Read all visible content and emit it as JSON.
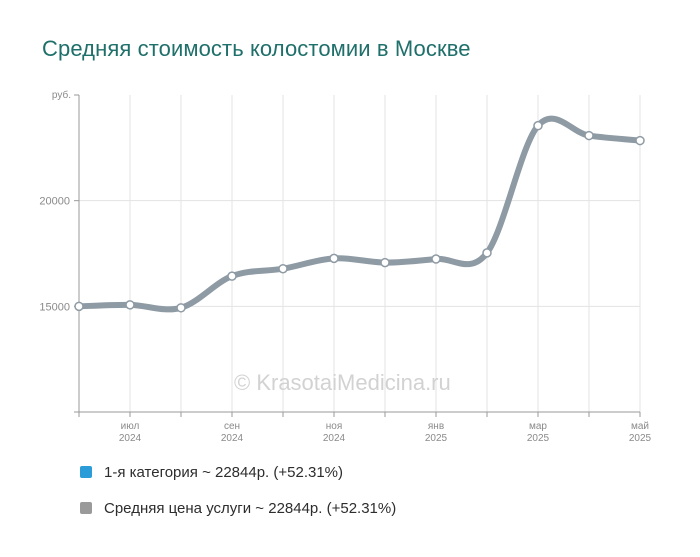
{
  "page": {
    "title": "Средняя стоимость колостомии в Москве",
    "watermark": "© KrasotaiMedicina.ru"
  },
  "legend": [
    {
      "label": "1-я категория ~ 22844р. (+52.31%)",
      "color": "#2b9cd8"
    },
    {
      "label": "Средняя цена услуги ~ 22844р. (+52.31%)",
      "color": "#9a9a9a"
    }
  ],
  "chart_data": {
    "type": "line",
    "y_unit": "руб.",
    "ylim": [
      10000,
      25000
    ],
    "y_ticks": [
      15000,
      20000
    ],
    "y_tick_labels": [
      "15000",
      "20000"
    ],
    "grid": true,
    "x": [
      "2024-06",
      "2024-07",
      "2024-08",
      "2024-09",
      "2024-10",
      "2024-11",
      "2024-12",
      "2025-01",
      "2025-02",
      "2025-03",
      "2025-04",
      "2025-05"
    ],
    "x_ticks": [
      {
        "index": 1,
        "month": "июл",
        "year": "2024"
      },
      {
        "index": 3,
        "month": "сен",
        "year": "2024"
      },
      {
        "index": 5,
        "month": "ноя",
        "year": "2024"
      },
      {
        "index": 7,
        "month": "янв",
        "year": "2025"
      },
      {
        "index": 9,
        "month": "мар",
        "year": "2025"
      },
      {
        "index": 11,
        "month": "май",
        "year": "2025"
      }
    ],
    "series": [
      {
        "name": "Средняя цена услуги",
        "color": "#8e9aa4",
        "values": [
          15000,
          15070,
          14930,
          16430,
          16780,
          17270,
          17070,
          17240,
          17530,
          23550,
          23080,
          22844
        ]
      }
    ]
  }
}
